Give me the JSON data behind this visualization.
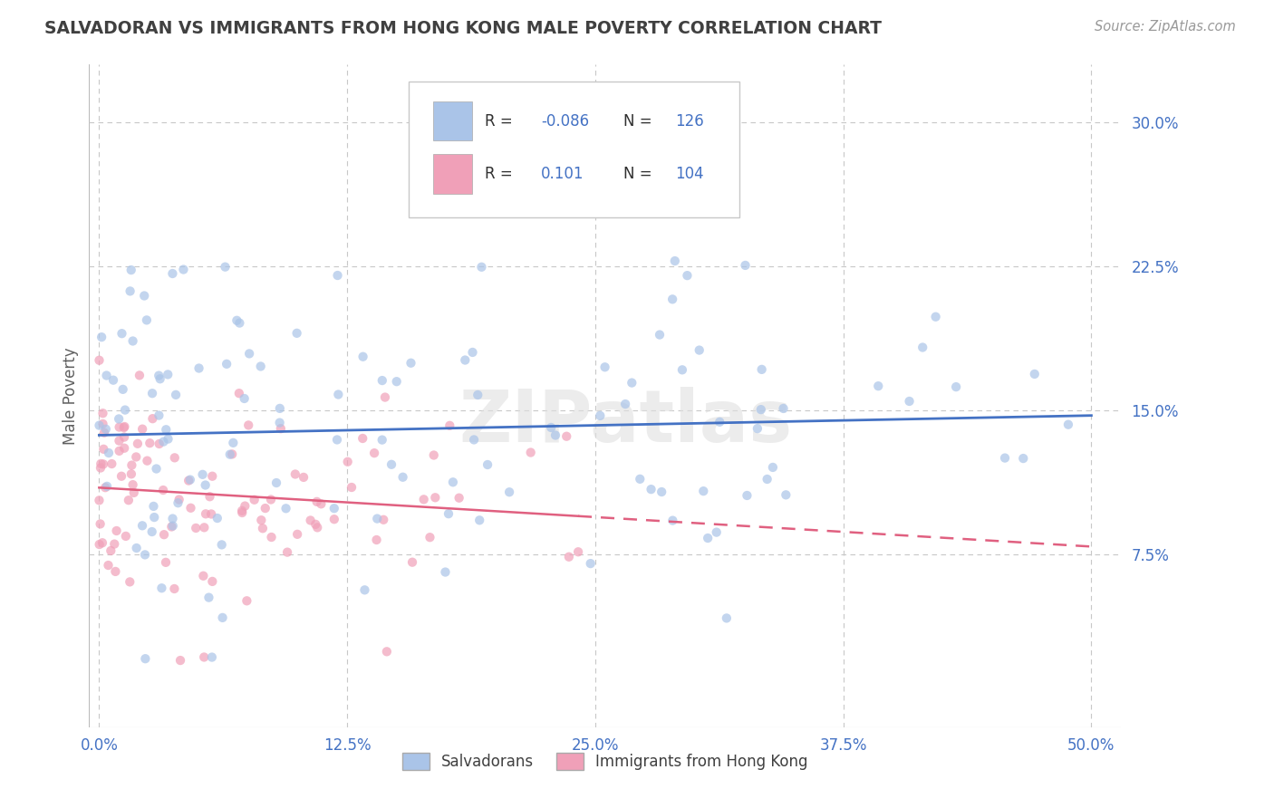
{
  "title": "SALVADORAN VS IMMIGRANTS FROM HONG KONG MALE POVERTY CORRELATION CHART",
  "source": "Source: ZipAtlas.com",
  "xlabel_ticks": [
    "0.0%",
    "12.5%",
    "25.0%",
    "37.5%",
    "50.0%"
  ],
  "xlabel_vals": [
    0.0,
    12.5,
    25.0,
    37.5,
    50.0
  ],
  "ylabel_ticks": [
    "7.5%",
    "15.0%",
    "22.5%",
    "30.0%"
  ],
  "ylabel_vals": [
    7.5,
    15.0,
    22.5,
    30.0
  ],
  "ylabel_label": "Male Poverty",
  "blue_color": "#aac4e8",
  "pink_color": "#f0a0b8",
  "blue_line_color": "#4472c4",
  "pink_line_color": "#e06080",
  "watermark": "ZIPatlas",
  "R_blue": -0.086,
  "N_blue": 126,
  "R_pink": 0.101,
  "N_pink": 104,
  "xlim": [
    -0.5,
    51.5
  ],
  "ylim": [
    -1.5,
    33.0
  ],
  "background_color": "#ffffff",
  "grid_color": "#c8c8c8",
  "title_color": "#404040",
  "axis_label_color": "#606060",
  "tick_label_color": "#4472c4",
  "legend_text_dark": "#303030",
  "legend_val_color": "#4472c4"
}
